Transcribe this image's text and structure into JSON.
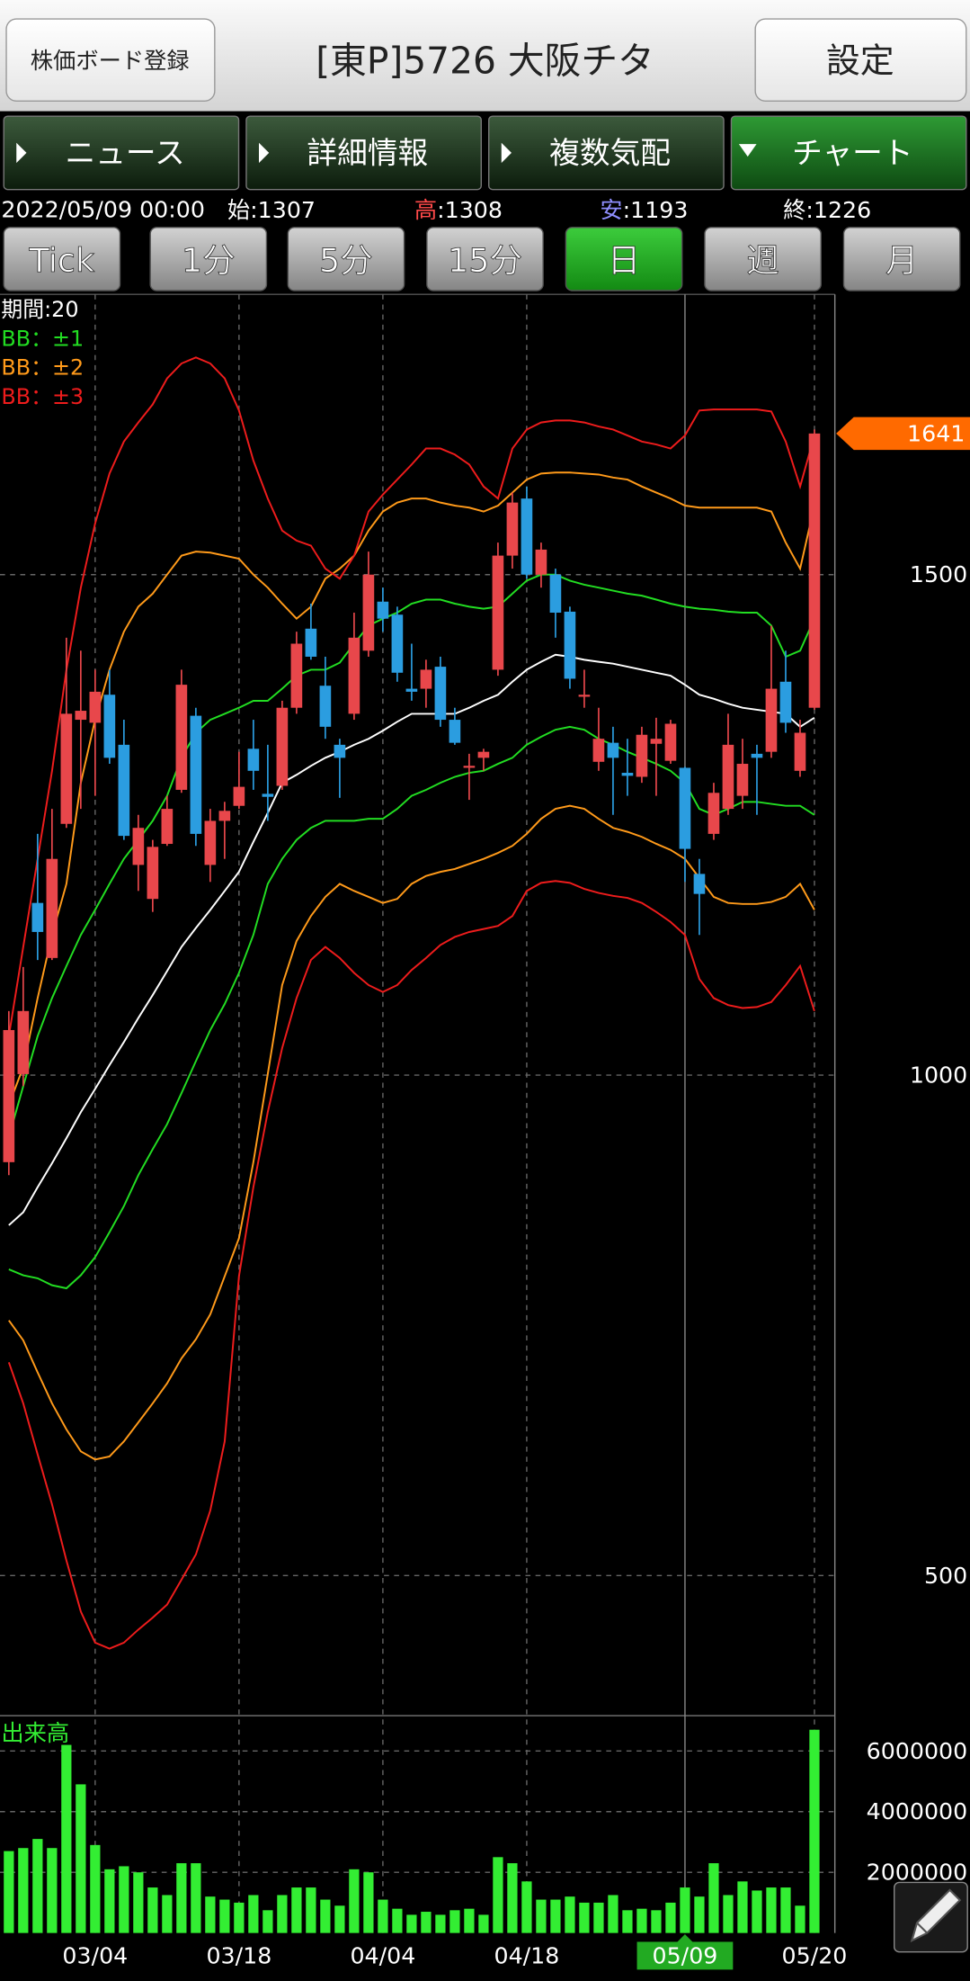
{
  "header": {
    "left_button": "株価ボード登録",
    "title": "[東P]5726 大阪チタ",
    "right_button": "設定"
  },
  "tabs": [
    {
      "label": "ニュース",
      "active": false
    },
    {
      "label": "詳細情報",
      "active": false
    },
    {
      "label": "複数気配",
      "active": false
    },
    {
      "label": "チャート",
      "active": true
    }
  ],
  "quote": {
    "datetime": "2022/05/09 00:00",
    "items": [
      {
        "label": "始",
        "sep": ":",
        "value": 1307,
        "color": "#ffffff"
      },
      {
        "label": "高",
        "sep": ":",
        "value": 1308,
        "color": "#ff4a4a"
      },
      {
        "label": "安",
        "sep": ":",
        "value": 1193,
        "color": "#8f8fff"
      },
      {
        "label": "終",
        "sep": ":",
        "value": 1226,
        "color": "#ffffff"
      }
    ]
  },
  "timeframes": [
    {
      "label": "Tick",
      "active": false
    },
    {
      "label": "1分",
      "active": false
    },
    {
      "label": "5分",
      "active": false
    },
    {
      "label": "15分",
      "active": false
    },
    {
      "label": "日",
      "active": true
    },
    {
      "label": "週",
      "active": false
    },
    {
      "label": "月",
      "active": false
    }
  ],
  "chart_data": {
    "type": "candlestick",
    "period_label": "期間:20",
    "categories": [
      null,
      null,
      null,
      null,
      null,
      null,
      "03/04",
      null,
      null,
      null,
      null,
      null,
      null,
      null,
      null,
      null,
      "03/18",
      null,
      null,
      null,
      null,
      null,
      null,
      null,
      null,
      null,
      "04/04",
      null,
      null,
      null,
      null,
      null,
      null,
      null,
      null,
      null,
      "04/18",
      null,
      null,
      null,
      null,
      null,
      null,
      null,
      null,
      null,
      null,
      "05/09",
      null,
      null,
      null,
      null,
      null,
      null,
      null,
      null,
      "05/20"
    ],
    "cursor_index": 47,
    "up_color": "#e8474b",
    "down_color": "#2b9de0",
    "open": [
      913,
      1001,
      1172,
      1117,
      1251,
      1355,
      1352,
      1380,
      1330,
      1210,
      1176,
      1231,
      1285,
      1359,
      1210,
      1254,
      1269,
      1326,
      1281,
      1289,
      1367,
      1446,
      1389,
      1330,
      1361,
      1424,
      1473,
      1460,
      1386,
      1386,
      1408,
      1355,
      1307,
      1317,
      1405,
      1519,
      1576,
      1500,
      1500,
      1463,
      1378,
      1313,
      1332,
      1302,
      1298,
      1331,
      1314,
      1307,
      1201,
      1241,
      1266,
      1279,
      1321,
      1323,
      1393,
      1304,
      1367
    ],
    "high": [
      1064,
      1108,
      1241,
      1266,
      1437,
      1424,
      1405,
      1405,
      1355,
      1260,
      1235,
      1279,
      1405,
      1367,
      1266,
      1273,
      1323,
      1355,
      1330,
      1374,
      1443,
      1471,
      1418,
      1336,
      1462,
      1523,
      1487,
      1468,
      1431,
      1415,
      1418,
      1367,
      1321,
      1326,
      1532,
      1582,
      1588,
      1532,
      1506,
      1468,
      1405,
      1367,
      1348,
      1336,
      1348,
      1357,
      1355,
      1308,
      1216,
      1292,
      1361,
      1336,
      1330,
      1449,
      1424,
      1355,
      1645
    ],
    "low": [
      900,
      989,
      1115,
      1115,
      1247,
      1266,
      1279,
      1311,
      1235,
      1184,
      1163,
      1229,
      1282,
      1229,
      1193,
      1216,
      1266,
      1285,
      1254,
      1285,
      1361,
      1415,
      1336,
      1277,
      1355,
      1418,
      1443,
      1393,
      1374,
      1367,
      1348,
      1330,
      1275,
      1304,
      1399,
      1506,
      1496,
      1487,
      1437,
      1386,
      1367,
      1304,
      1260,
      1279,
      1292,
      1279,
      1311,
      1193,
      1140,
      1235,
      1260,
      1266,
      1260,
      1317,
      1342,
      1298,
      1365
    ],
    "close": [
      1045,
      1064,
      1143,
      1216,
      1361,
      1364,
      1383,
      1317,
      1239,
      1247,
      1228,
      1266,
      1390,
      1241,
      1254,
      1264,
      1288,
      1304,
      1278,
      1367,
      1431,
      1418,
      1348,
      1317,
      1437,
      1500,
      1456,
      1402,
      1383,
      1405,
      1355,
      1332,
      1309,
      1323,
      1519,
      1572,
      1500,
      1525,
      1462,
      1396,
      1380,
      1336,
      1317,
      1299,
      1340,
      1336,
      1351,
      1226,
      1181,
      1282,
      1330,
      1311,
      1317,
      1386,
      1352,
      1342,
      1641
    ],
    "last_price_color": "#ff6a00",
    "middle": {
      "color": "#ffffff",
      "values": [
        850,
        863,
        888,
        912,
        937,
        963,
        986,
        1010,
        1033,
        1057,
        1080,
        1104,
        1128,
        1147,
        1165,
        1184,
        1203,
        1233,
        1262,
        1292,
        1300,
        1309,
        1317,
        1323,
        1330,
        1336,
        1344,
        1353,
        1361,
        1361,
        1361,
        1361,
        1367,
        1374,
        1380,
        1393,
        1405,
        1413,
        1420,
        1418,
        1415,
        1413,
        1411,
        1408,
        1405,
        1402,
        1399,
        1390,
        1380,
        1376,
        1371,
        1367,
        1365,
        1363,
        1361,
        1348,
        1357
      ]
    },
    "bands": [
      {
        "name": "BB：±1",
        "color": "#22dd22",
        "upper": [
          938,
          989,
          1039,
          1077,
          1109,
          1140,
          1165,
          1191,
          1216,
          1235,
          1254,
          1279,
          1317,
          1342,
          1355,
          1361,
          1367,
          1374,
          1374,
          1386,
          1399,
          1405,
          1405,
          1412,
          1431,
          1449,
          1456,
          1462,
          1471,
          1475,
          1475,
          1471,
          1468,
          1466,
          1468,
          1481,
          1494,
          1500,
          1500,
          1494,
          1490,
          1487,
          1484,
          1481,
          1479,
          1475,
          1471,
          1468,
          1466,
          1465,
          1463,
          1462,
          1462,
          1449,
          1418,
          1424,
          1456
        ],
        "lower": [
          806,
          800,
          797,
          790,
          787,
          800,
          818,
          843,
          869,
          900,
          926,
          951,
          982,
          1014,
          1045,
          1071,
          1102,
          1140,
          1191,
          1216,
          1235,
          1247,
          1254,
          1254,
          1254,
          1256,
          1256,
          1266,
          1279,
          1285,
          1292,
          1298,
          1302,
          1304,
          1311,
          1317,
          1330,
          1338,
          1345,
          1348,
          1345,
          1336,
          1330,
          1323,
          1317,
          1311,
          1304,
          1292,
          1266,
          1260,
          1266,
          1273,
          1273,
          1271,
          1269,
          1269,
          1260
        ]
      },
      {
        "name": "BB：±2",
        "color": "#ff9a1a",
        "upper": [
          970,
          1008,
          1077,
          1140,
          1191,
          1292,
          1355,
          1405,
          1443,
          1468,
          1481,
          1500,
          1519,
          1523,
          1522,
          1519,
          1516,
          1500,
          1487,
          1471,
          1456,
          1468,
          1496,
          1506,
          1519,
          1544,
          1563,
          1572,
          1576,
          1576,
          1572,
          1569,
          1567,
          1563,
          1569,
          1582,
          1595,
          1601,
          1602,
          1602,
          1601,
          1600,
          1597,
          1595,
          1588,
          1582,
          1576,
          1569,
          1567,
          1567,
          1567,
          1567,
          1567,
          1563,
          1532,
          1506,
          1569
        ],
        "lower": [
          755,
          735,
          703,
          672,
          646,
          624,
          616,
          619,
          634,
          653,
          672,
          692,
          717,
          736,
          761,
          799,
          837,
          913,
          1001,
          1090,
          1134,
          1159,
          1178,
          1191,
          1184,
          1178,
          1172,
          1176,
          1191,
          1199,
          1203,
          1206,
          1211,
          1216,
          1222,
          1229,
          1241,
          1256,
          1266,
          1269,
          1266,
          1256,
          1247,
          1243,
          1238,
          1231,
          1225,
          1216,
          1197,
          1178,
          1172,
          1171,
          1171,
          1173,
          1178,
          1191,
          1165
        ]
      },
      {
        "name": "BB：±3",
        "color": "#ee1c1c",
        "upper": [
          1039,
          1128,
          1216,
          1304,
          1405,
          1487,
          1551,
          1601,
          1633,
          1652,
          1670,
          1696,
          1711,
          1717,
          1711,
          1696,
          1664,
          1614,
          1576,
          1544,
          1534,
          1529,
          1506,
          1496,
          1519,
          1563,
          1580,
          1595,
          1610,
          1626,
          1626,
          1620,
          1610,
          1588,
          1576,
          1626,
          1645,
          1652,
          1654,
          1654,
          1652,
          1648,
          1645,
          1639,
          1633,
          1630,
          1626,
          1639,
          1664,
          1665,
          1665,
          1665,
          1665,
          1663,
          1633,
          1588,
          1639
        ],
        "lower": [
          713,
          672,
          621,
          571,
          515,
          464,
          433,
          427,
          433,
          446,
          458,
          471,
          496,
          521,
          565,
          634,
          799,
          888,
          963,
          1027,
          1077,
          1115,
          1128,
          1117,
          1102,
          1090,
          1083,
          1090,
          1105,
          1117,
          1130,
          1138,
          1143,
          1146,
          1149,
          1159,
          1184,
          1192,
          1194,
          1192,
          1186,
          1182,
          1179,
          1177,
          1172,
          1163,
          1153,
          1140,
          1096,
          1077,
          1070,
          1067,
          1068,
          1073,
          1090,
          1109,
          1064
        ]
      }
    ],
    "ylim": [
      360,
      1780
    ],
    "yticks": [
      500,
      1000,
      1500
    ],
    "grid": true,
    "volume": {
      "title": "出来高",
      "color": "#33ee33",
      "values": [
        2700000,
        2800000,
        3100000,
        2800000,
        6200000,
        4900000,
        2900000,
        2100000,
        2200000,
        2000000,
        1500000,
        1250000,
        2300000,
        2300000,
        1200000,
        1100000,
        1000000,
        1250000,
        750000,
        1250000,
        1500000,
        1500000,
        1100000,
        900000,
        2100000,
        2000000,
        1100000,
        800000,
        600000,
        700000,
        600000,
        750000,
        800000,
        600000,
        2500000,
        2300000,
        1700000,
        1100000,
        1100000,
        1200000,
        1000000,
        1000000,
        1250000,
        750000,
        800000,
        750000,
        1000000,
        1500000,
        1200000,
        2300000,
        1250000,
        1700000,
        1400000,
        1500000,
        1500000,
        900000,
        6700000
      ],
      "ylim": [
        0,
        7080000
      ],
      "yticks": [
        2000000,
        4000000,
        6000000
      ]
    }
  }
}
